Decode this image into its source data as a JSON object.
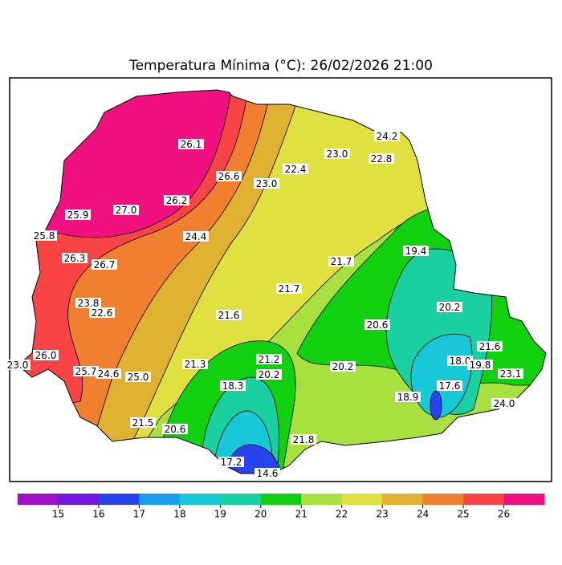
{
  "title": "Temperatura Mínima (°C): 26/02/2026 21:00",
  "stations": [
    "26.1",
    "26.6",
    "23.0",
    "22.4",
    "23.0",
    "22.8",
    "24.2",
    "25.9",
    "27.0",
    "26.2",
    "25.8",
    "24.4",
    "26.3",
    "26.7",
    "19.4",
    "21.7",
    "21.7",
    "23.8",
    "22.6",
    "20.2",
    "21.6",
    "20.6",
    "21.6",
    "26.0",
    "23.0",
    "18.0",
    "19.8",
    "21.3",
    "21.2",
    "20.2",
    "20.2",
    "25.7",
    "24.6",
    "25.0",
    "23.1",
    "18.3",
    "17.6",
    "18.9",
    "24.0",
    "21.5",
    "20.6",
    "21.8",
    "17.2",
    "14.6"
  ],
  "colorbar": {
    "colors": [
      "#a010c8",
      "#7018e0",
      "#2844f0",
      "#18a0f0",
      "#18c8d8",
      "#18d0a0",
      "#10d010",
      "#a8e040",
      "#e0e040",
      "#e0b030",
      "#f08030",
      "#f84444",
      "#f01080"
    ],
    "ticks": [
      15,
      16,
      17,
      18,
      19,
      20,
      21,
      22,
      23,
      24,
      25,
      26
    ]
  }
}
